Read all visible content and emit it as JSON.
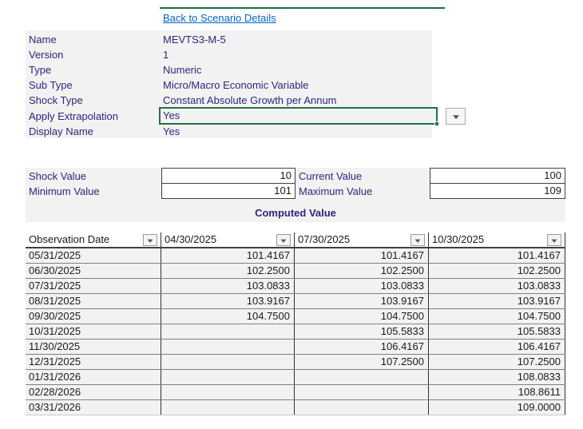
{
  "link": {
    "label": "Back to Scenario Details"
  },
  "fields": [
    {
      "label": "Name",
      "value": "MEVTS3-M-5"
    },
    {
      "label": "Version",
      "value": "1"
    },
    {
      "label": "Type",
      "value": "Numeric"
    },
    {
      "label": "Sub Type",
      "value": "Micro/Macro Economic Variable"
    },
    {
      "label": "Shock Type",
      "value": "Constant Absolute Growth per Annum"
    },
    {
      "label": "Apply Extrapolation",
      "value": "Yes"
    },
    {
      "label": "Display Name",
      "value": "Yes"
    }
  ],
  "stats": {
    "shock_label": "Shock Value",
    "shock_value": "10",
    "current_label": "Current Value",
    "current_value": "100",
    "min_label": "Minimum Value",
    "min_value": "101",
    "max_label": "Maximum Value",
    "max_value": "109"
  },
  "computed_title": "Computed Value",
  "table": {
    "headers": [
      "Observation Date",
      "04/30/2025",
      "07/30/2025",
      "10/30/2025"
    ],
    "rows": [
      [
        "05/31/2025",
        "101.4167",
        "101.4167",
        "101.4167"
      ],
      [
        "06/30/2025",
        "102.2500",
        "102.2500",
        "102.2500"
      ],
      [
        "07/31/2025",
        "103.0833",
        "103.0833",
        "103.0833"
      ],
      [
        "08/31/2025",
        "103.9167",
        "103.9167",
        "103.9167"
      ],
      [
        "09/30/2025",
        "104.7500",
        "104.7500",
        "104.7500"
      ],
      [
        "10/31/2025",
        "",
        "105.5833",
        "105.5833"
      ],
      [
        "11/30/2025",
        "",
        "106.4167",
        "106.4167"
      ],
      [
        "12/31/2025",
        "",
        "107.2500",
        "107.2500"
      ],
      [
        "01/31/2026",
        "",
        "",
        "108.0833"
      ],
      [
        "02/28/2026",
        "",
        "",
        "108.8611"
      ],
      [
        "03/31/2026",
        "",
        "",
        "109.0000"
      ]
    ]
  },
  "colors": {
    "accent_green": "#217346",
    "topline_green": "#1F6B43",
    "navy_text": "#28287C",
    "link_blue": "#0563C1",
    "band_gray": "#F2F2F2",
    "grid_line": "#808080"
  }
}
